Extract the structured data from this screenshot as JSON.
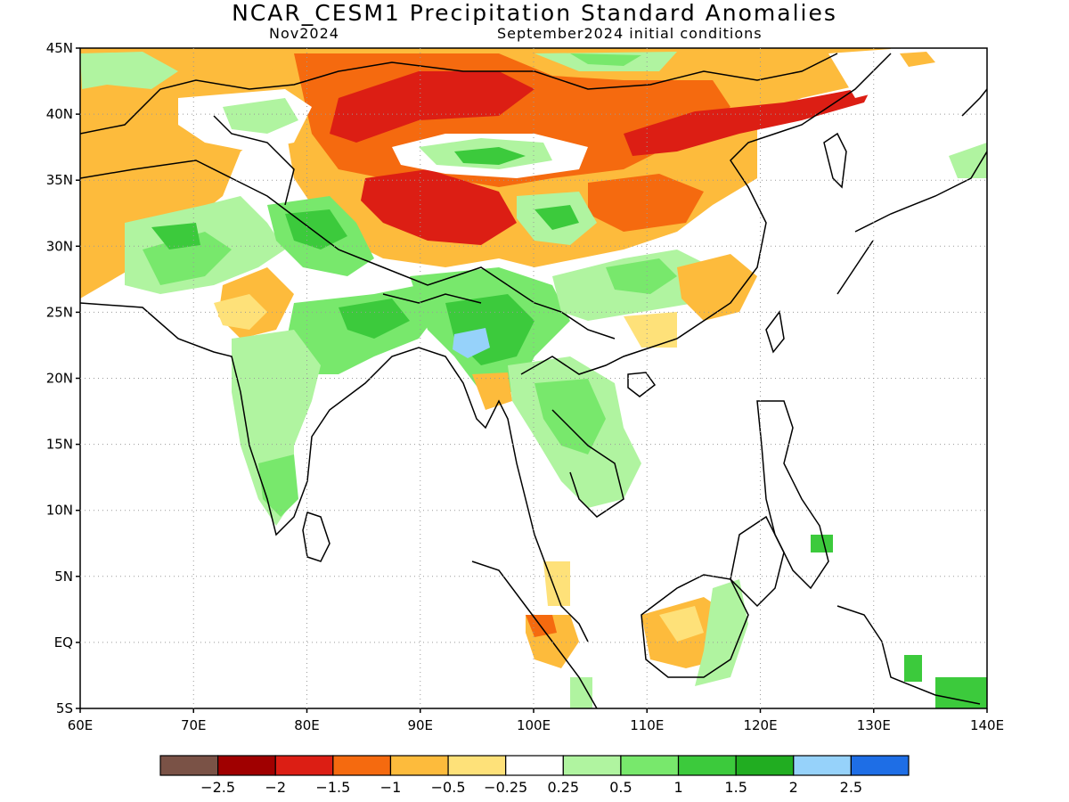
{
  "title": "NCAR_CESM1 Precipitation Standard Anomalies",
  "subtitle_left": "Nov2024",
  "subtitle_right": "September2024 initial conditions",
  "map": {
    "lon_range": [
      60,
      140
    ],
    "lat_range": [
      -5,
      45
    ],
    "lon_labels": [
      "60E",
      "70E",
      "80E",
      "90E",
      "100E",
      "110E",
      "120E",
      "130E",
      "140E"
    ],
    "lat_labels": [
      "5S",
      "EQ",
      "5N",
      "10N",
      "15N",
      "20N",
      "25N",
      "30N",
      "35N",
      "40N",
      "45N"
    ],
    "gridlines": "dotted"
  },
  "colorbar": {
    "colors": [
      "#7a5246",
      "#a00000",
      "#dc1e14",
      "#f56a0f",
      "#fdbb3c",
      "#fee179",
      "#ffffff",
      "#b0f4a0",
      "#78e86c",
      "#3cca3c",
      "#21ad21",
      "#96d2fa",
      "#1e6ee6"
    ],
    "labels": [
      "−2.5",
      "−2",
      "−1.5",
      "−1",
      "−0.5",
      "−0.25",
      "0.25",
      "0.5",
      "1",
      "1.5",
      "2",
      "2.5"
    ]
  }
}
